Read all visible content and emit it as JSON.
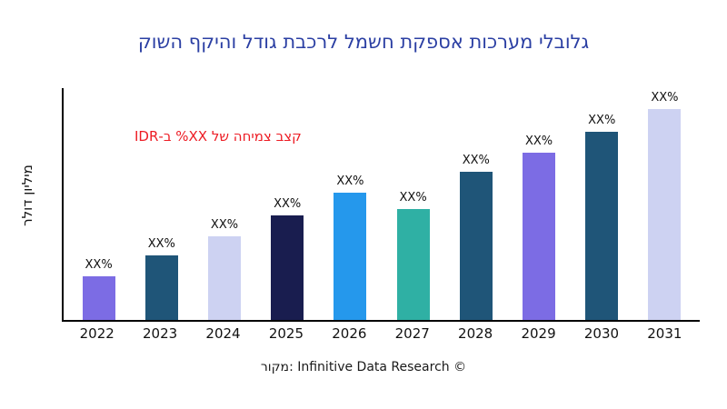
{
  "title": "גלובלי מערכות אספקת חשמל לרכבת גודל והיקף השוק",
  "title_color": "#2B3FA3",
  "annotation": {
    "text": "קצב צמיחה של XX% ב-IDR",
    "color": "#ED1C24"
  },
  "y_axis_label": "מיליון דולר",
  "source": "מקור: Infinitive Data Research ©",
  "chart_data": {
    "type": "bar",
    "title": "גלובלי מערכות אספקת חשמל לרכבת גודל והיקף השוק",
    "xlabel": "",
    "ylabel": "מיליון דולר",
    "categories": [
      "2022",
      "2023",
      "2024",
      "2025",
      "2026",
      "2027",
      "2028",
      "2029",
      "2030",
      "2031"
    ],
    "values": [
      19,
      28,
      36,
      45,
      55,
      48,
      64,
      72,
      81,
      91
    ],
    "value_unit": "percent-of-plot-height (actual values masked as XX% in source image)",
    "bar_labels": [
      "XX%",
      "XX%",
      "XX%",
      "XX%",
      "XX%",
      "XX%",
      "XX%",
      "XX%",
      "XX%",
      "XX%"
    ],
    "colors": [
      "#7C6CE4",
      "#1F5578",
      "#CDD2F2",
      "#191D4F",
      "#2598EC",
      "#2FB0A4",
      "#1F5578",
      "#7C6CE4",
      "#1F5578",
      "#CDD2F2"
    ],
    "grid": false,
    "legend": false,
    "annotation": "קצב צמיחה של XX% ב-IDR"
  }
}
